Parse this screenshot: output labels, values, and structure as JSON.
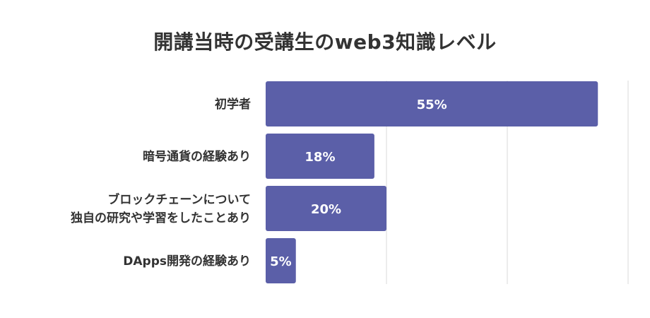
{
  "chart_data": {
    "type": "bar",
    "orientation": "horizontal",
    "title": "開講当時の受講生のweb3知識レベル",
    "categories": [
      [
        "初学者"
      ],
      [
        "暗号通貨の経験あり"
      ],
      [
        "ブロックチェーンについて",
        "独自の研究や学習をしたことあり"
      ],
      [
        "DApps開発の経験あり"
      ]
    ],
    "values": [
      55,
      18,
      20,
      5
    ],
    "value_labels": [
      "55%",
      "18%",
      "20%",
      "5%"
    ],
    "xlim": [
      0,
      60
    ],
    "grid": true,
    "bar_color": "#5B5FA8",
    "grid_color": "#D9D9D9",
    "label_color": "#333333"
  }
}
